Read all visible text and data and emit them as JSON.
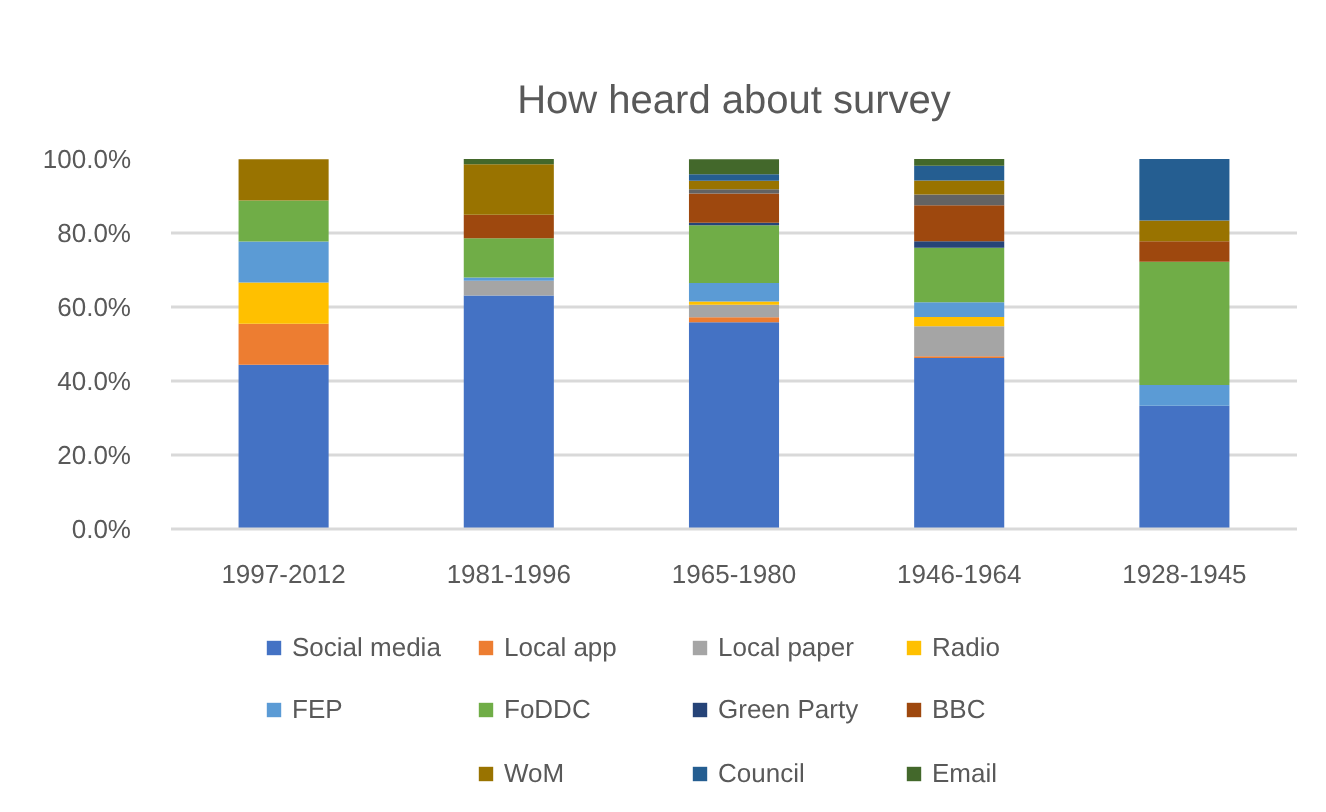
{
  "chart_data": {
    "type": "bar",
    "title": "How heard about survey",
    "stacked": true,
    "categories": [
      "1997-2012",
      "1981-1996",
      "1965-1980",
      "1946-1964",
      "1928-1945"
    ],
    "series": [
      {
        "name": "Social media",
        "color": "#4472c4",
        "values": [
          44.4,
          63.1,
          55.9,
          46.2,
          33.3
        ]
      },
      {
        "name": "Local app",
        "color": "#ed7d31",
        "values": [
          11.1,
          null,
          1.3,
          0.5,
          null
        ]
      },
      {
        "name": "Local paper",
        "color": "#a5a5a5",
        "values": [
          null,
          4.0,
          3.4,
          8.1,
          null
        ]
      },
      {
        "name": "Radio",
        "color": "#ffc000",
        "values": [
          11.1,
          null,
          0.9,
          2.5,
          null
        ]
      },
      {
        "name": "FEP",
        "color": "#5b9bd5",
        "values": [
          11.1,
          0.9,
          5.0,
          4.0,
          5.6
        ]
      },
      {
        "name": "FoDDC",
        "color": "#70ad47",
        "values": [
          11.1,
          10.6,
          15.6,
          14.7,
          33.3
        ]
      },
      {
        "name": "Green Party",
        "color": "#264478",
        "values": [
          null,
          null,
          0.7,
          1.8,
          null
        ]
      },
      {
        "name": "BBC",
        "color": "#9e480e",
        "values": [
          null,
          6.3,
          7.9,
          9.7,
          5.6
        ]
      },
      {
        "color": "#636363",
        "values": [
          null,
          null,
          1.1,
          2.9,
          null
        ]
      },
      {
        "name": "WoM",
        "color": "#997300",
        "values": [
          11.1,
          13.7,
          2.3,
          3.8,
          5.6
        ]
      },
      {
        "name": "Council",
        "color": "#255e91",
        "values": [
          null,
          null,
          1.8,
          4.0,
          16.6
        ]
      },
      {
        "name": "Email",
        "color": "#43682b",
        "values": [
          null,
          1.4,
          4.0,
          1.8,
          null
        ]
      }
    ],
    "ylim": [
      0,
      100
    ],
    "yticks": [
      {
        "value": 0,
        "label": "0.0%"
      },
      {
        "value": 20,
        "label": "20.0%"
      },
      {
        "value": 40,
        "label": "40.0%"
      },
      {
        "value": 60,
        "label": "60.0%"
      },
      {
        "value": 80,
        "label": "80.0%"
      },
      {
        "value": 100,
        "label": "100.0%"
      }
    ],
    "grid": "y",
    "legend": "bottom"
  }
}
